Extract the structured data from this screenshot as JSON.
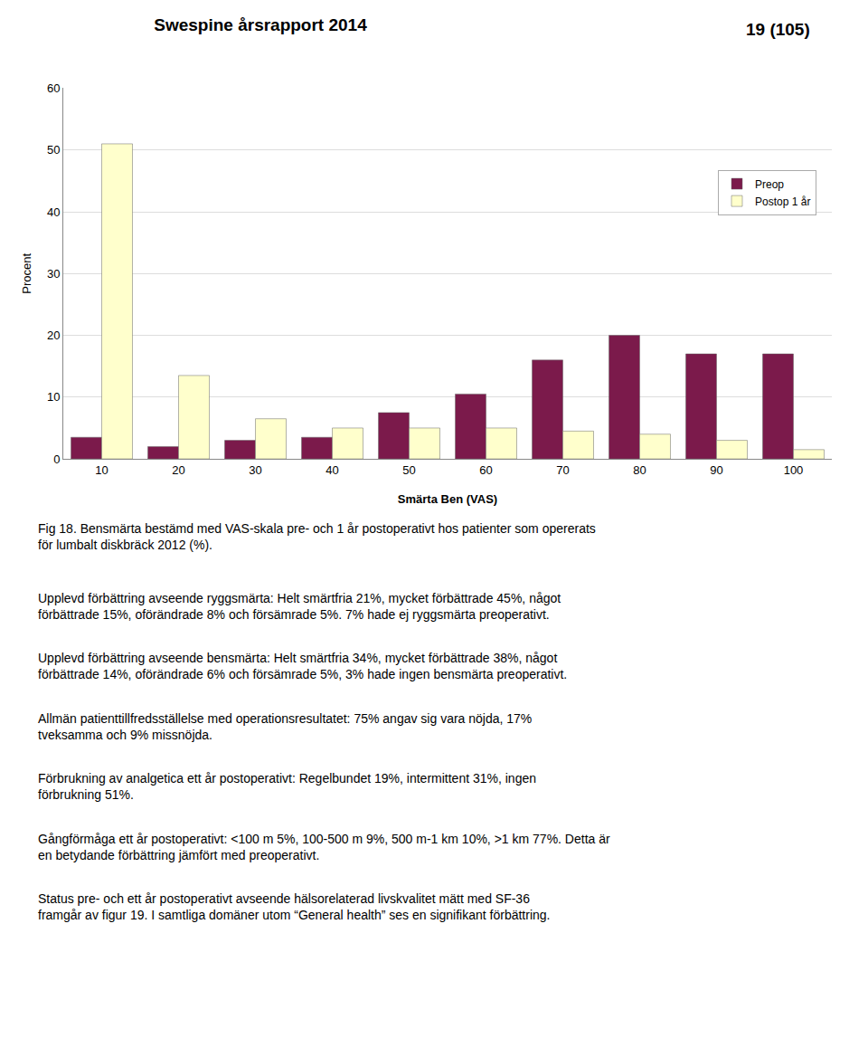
{
  "chart_data": {
    "type": "bar",
    "title": "Swespine årsrapport 2014",
    "xlabel": "Smärta Ben (VAS)",
    "ylabel": "Procent",
    "categories": [
      10,
      20,
      30,
      40,
      50,
      60,
      70,
      80,
      90,
      100
    ],
    "series": [
      {
        "name": "Preop",
        "color": "#7B1A4B",
        "values": [
          3.5,
          2.0,
          3.0,
          3.5,
          7.5,
          10.5,
          16.0,
          20.0,
          17.0,
          17.0
        ]
      },
      {
        "name": "Postop 1 år",
        "color": "#FFFFCC",
        "values": [
          51.0,
          13.5,
          6.5,
          5.0,
          5.0,
          5.0,
          4.5,
          4.0,
          3.0,
          1.5
        ]
      }
    ],
    "ylim": [
      0,
      60
    ],
    "yticks": [
      0,
      10,
      20,
      30,
      40,
      50,
      60
    ],
    "grid": true,
    "legend": "upper right",
    "annotations": [
      "19 (105)",
      "Fig 18. Bensmärta bestämd med VAS-skala pre- och 1 år postoperativt hos patienter som opererats för lumbalt diskbräck 2012 (%).",
      "Upplevd förbättring avseende ryggsmärta: Helt smärtfria 21%, mycket förbättrade 45%, något förbättrade 15%, oförändrade 8% och försämrade 5%. 7% hade ej ryggsmärta preoperativt.",
      "Upplevd förbättring avseende bensmärta: Helt smärtfria 34%, mycket förbättrade 38%, något förbättrade 14%, oförändrade 6% och försämrade 5%, 3% hade ingen bensmärta preoperativt.",
      "Allmän patienttillfredsställelse med operationsresultatet: 75% angav sig vara nöjda, 17% tveksamma och 9% missnöjda.",
      "Förbrukning av analgetica ett år postoperativt: Regelbundet 19%, intermittent 31%, ingen förbrukning 51%.",
      "Gångförmåga ett år postoperativt: <100 m 5%, 100-500 m 9%, 500 m-1 km 10%, >1 km 77%. Detta är en betydande förbättring jämfört med preoperativt.",
      "Status pre- och ett år postoperativt avseende hälsorelaterad livskvalitet mätt med SF-36 framgår av figur 19. I samtliga domäner utom “General health” ses en signifikant förbättring."
    ]
  }
}
